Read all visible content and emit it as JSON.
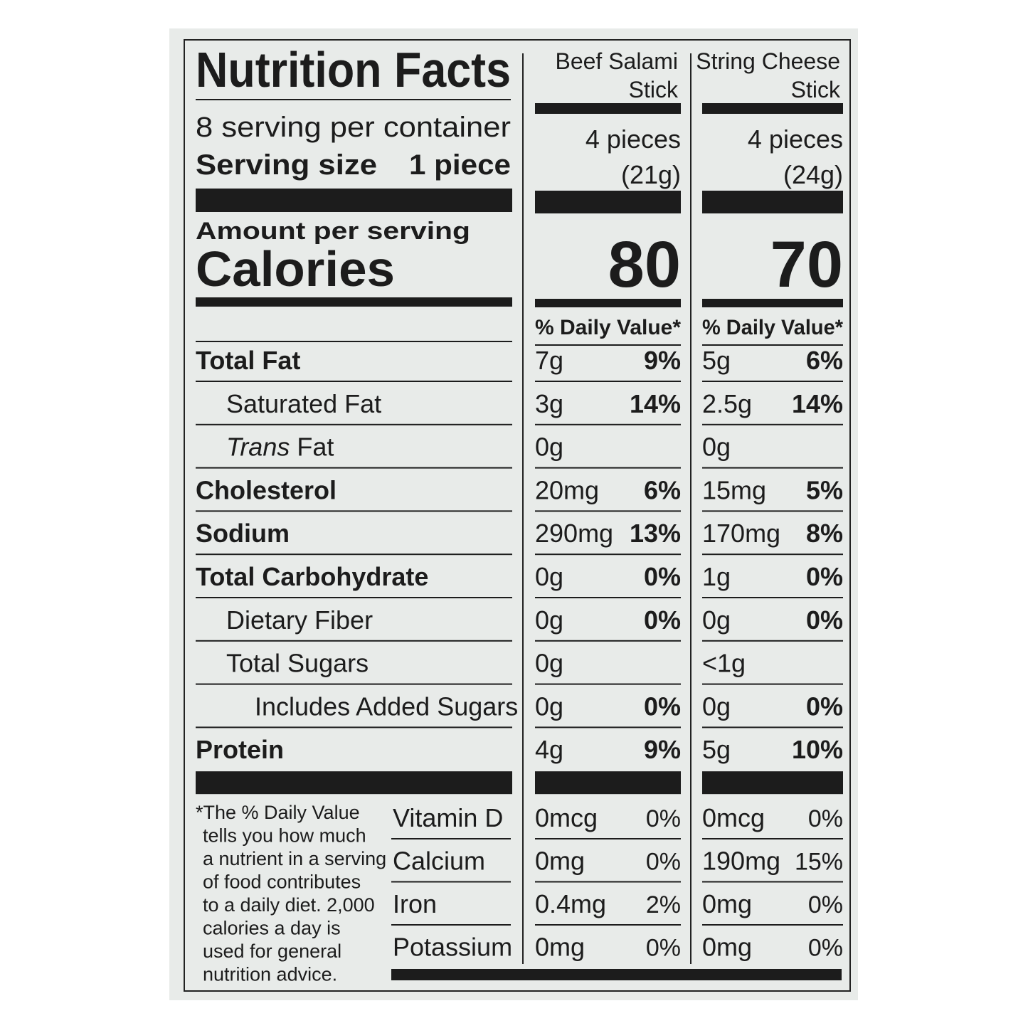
{
  "title": "Nutrition Facts",
  "servings_per_container": "8 serving per container",
  "serving_size_label": "Serving size",
  "serving_size": "1 piece",
  "amount_per_serving": "Amount per serving",
  "calories_label": "Calories",
  "columns": [
    {
      "name": [
        "Beef Salami",
        "Stick"
      ],
      "serving": [
        "4 pieces",
        "(21g)"
      ],
      "calories": "80",
      "daily_value_header": "% Daily Value*"
    },
    {
      "name": [
        "String Cheese",
        "Stick"
      ],
      "serving": [
        "4 pieces",
        "(24g)"
      ],
      "calories": "70",
      "daily_value_header": "% Daily Value*"
    }
  ],
  "nutrients": [
    {
      "label": "Total Fat",
      "bold": true,
      "indent": 0,
      "values": [
        {
          "amount": "7g",
          "dv": "9%"
        },
        {
          "amount": "5g",
          "dv": "6%"
        }
      ]
    },
    {
      "label": "Saturated Fat",
      "bold": false,
      "indent": 1,
      "values": [
        {
          "amount": "3g",
          "dv": "14%"
        },
        {
          "amount": "2.5g",
          "dv": "14%"
        }
      ]
    },
    {
      "italic": "Trans",
      "label": "Fat",
      "bold": false,
      "indent": 1,
      "values": [
        {
          "amount": "0g",
          "dv": null
        },
        {
          "amount": "0g",
          "dv": null
        }
      ]
    },
    {
      "label": "Cholesterol",
      "bold": true,
      "indent": 0,
      "values": [
        {
          "amount": "20mg",
          "dv": "6%"
        },
        {
          "amount": "15mg",
          "dv": "5%"
        }
      ]
    },
    {
      "label": "Sodium",
      "bold": true,
      "indent": 0,
      "values": [
        {
          "amount": "290mg",
          "dv": "13%"
        },
        {
          "amount": "170mg",
          "dv": "8%"
        }
      ]
    },
    {
      "label": "Total Carbohydrate",
      "bold": true,
      "indent": 0,
      "values": [
        {
          "amount": "0g",
          "dv": "0%"
        },
        {
          "amount": "1g",
          "dv": "0%"
        }
      ]
    },
    {
      "label": "Dietary Fiber",
      "bold": false,
      "indent": 1,
      "values": [
        {
          "amount": "0g",
          "dv": "0%"
        },
        {
          "amount": "0g",
          "dv": "0%"
        }
      ]
    },
    {
      "label": "Total Sugars",
      "bold": false,
      "indent": 1,
      "values": [
        {
          "amount": "0g",
          "dv": null
        },
        {
          "amount": "<1g",
          "dv": null
        }
      ]
    },
    {
      "label": "Includes Added Sugars",
      "bold": false,
      "indent": 2,
      "values": [
        {
          "amount": "0g",
          "dv": "0%"
        },
        {
          "amount": "0g",
          "dv": "0%"
        }
      ]
    },
    {
      "label": "Protein",
      "bold": true,
      "indent": 0,
      "values": [
        {
          "amount": "4g",
          "dv": "9%"
        },
        {
          "amount": "5g",
          "dv": "10%"
        }
      ]
    }
  ],
  "footnote": [
    "*The % Daily Value",
    "tells you how much",
    "a nutrient in a serving",
    "of food contributes",
    "to a daily diet. 2,000",
    "calories a day is",
    "used for general",
    "nutrition advice."
  ],
  "vitamins": [
    {
      "label": "Vitamin D",
      "values": [
        {
          "amount": "0mcg",
          "dv": "0%"
        },
        {
          "amount": "0mcg",
          "dv": "0%"
        }
      ]
    },
    {
      "label": "Calcium",
      "values": [
        {
          "amount": "0mg",
          "dv": "0%"
        },
        {
          "amount": "190mg",
          "dv": "15%"
        }
      ]
    },
    {
      "label": "Iron",
      "values": [
        {
          "amount": "0.4mg",
          "dv": "2%"
        },
        {
          "amount": "0mg",
          "dv": "0%"
        }
      ]
    },
    {
      "label": "Potassium",
      "values": [
        {
          "amount": "0mg",
          "dv": "0%"
        },
        {
          "amount": "0mg",
          "dv": "0%"
        }
      ]
    }
  ]
}
